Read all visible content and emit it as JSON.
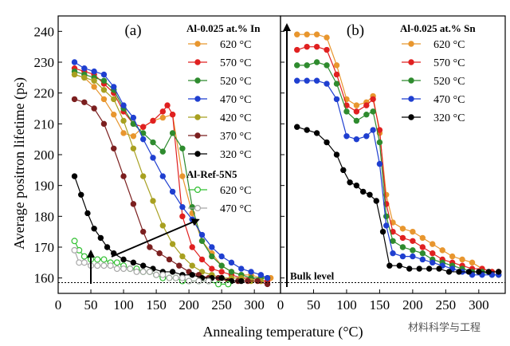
{
  "figure": {
    "ylabel": "Average positron lifetime (ps)",
    "xlabel": "Annealing temperature (°C)",
    "watermark": "材料科学与工程",
    "bulk_label": "Bulk level",
    "bulk_value": 158.5
  },
  "chart_data": [
    {
      "type": "line",
      "panel_label": "(a)",
      "xlim": [
        0,
        340
      ],
      "ylim": [
        155,
        245
      ],
      "xticks": [
        0,
        50,
        100,
        150,
        200,
        250,
        300
      ],
      "yticks": [
        160,
        170,
        180,
        190,
        200,
        210,
        220,
        230,
        240
      ],
      "legend_groups": [
        {
          "title": "Al-0.025 at.% In",
          "entries": [
            0,
            1,
            2,
            3,
            4,
            5,
            6
          ]
        },
        {
          "title": "Al-Ref-5N5",
          "entries": [
            7,
            8
          ]
        }
      ],
      "series": [
        {
          "name": "620 °C",
          "color": "#E8962E",
          "filled": true,
          "x": [
            25,
            40,
            55,
            70,
            85,
            100,
            115,
            130,
            145,
            160,
            175,
            190,
            205,
            220,
            235,
            250,
            265,
            280,
            295,
            310,
            325
          ],
          "y": [
            226,
            225,
            222,
            218,
            213,
            207,
            206,
            209,
            211,
            212,
            213,
            193,
            181,
            172,
            168,
            164,
            162,
            161,
            161,
            160,
            160
          ]
        },
        {
          "name": "570 °C",
          "color": "#E02020",
          "filled": true,
          "x": [
            25,
            40,
            55,
            70,
            85,
            100,
            115,
            130,
            145,
            160,
            167,
            175,
            190,
            205,
            220,
            235,
            250,
            265,
            280,
            295,
            310,
            320
          ],
          "y": [
            228,
            227,
            226,
            223,
            220,
            214,
            210,
            209,
            211,
            214,
            216,
            213,
            180,
            170,
            166,
            163,
            162,
            161,
            160,
            160,
            159,
            159
          ]
        },
        {
          "name": "520 °C",
          "color": "#2E8B2E",
          "filled": true,
          "x": [
            25,
            40,
            55,
            70,
            85,
            100,
            115,
            130,
            145,
            160,
            175,
            190,
            205,
            220,
            235,
            250,
            265,
            280,
            295,
            310,
            320
          ],
          "y": [
            227,
            226,
            225,
            224,
            221,
            215,
            210,
            207,
            204,
            201,
            207,
            202,
            183,
            172,
            167,
            164,
            162,
            161,
            160,
            160,
            160
          ]
        },
        {
          "name": "470 °C",
          "color": "#1F3FD0",
          "filled": true,
          "x": [
            25,
            40,
            55,
            70,
            85,
            100,
            115,
            130,
            145,
            160,
            175,
            190,
            205,
            220,
            235,
            250,
            265,
            280,
            295,
            310,
            320
          ],
          "y": [
            230,
            228,
            227,
            226,
            222,
            216,
            212,
            205,
            199,
            193,
            188,
            183,
            179,
            174,
            170,
            167,
            165,
            163,
            162,
            161,
            160
          ]
        },
        {
          "name": "420 °C",
          "color": "#A8A020",
          "filled": true,
          "x": [
            25,
            40,
            55,
            70,
            85,
            100,
            115,
            130,
            145,
            160,
            175,
            190,
            205,
            220,
            235,
            250,
            265,
            280,
            295,
            310
          ],
          "y": [
            226,
            225,
            224,
            221,
            218,
            211,
            202,
            193,
            185,
            177,
            171,
            167,
            164,
            162,
            161,
            160,
            160,
            160,
            159,
            159
          ]
        },
        {
          "name": "370 °C",
          "color": "#7B1F1F",
          "filled": true,
          "x": [
            25,
            40,
            55,
            70,
            85,
            100,
            115,
            130,
            140,
            155,
            170,
            185,
            200,
            215,
            230,
            245,
            260,
            275,
            290,
            305,
            320
          ],
          "y": [
            218,
            217,
            215,
            210,
            202,
            193,
            184,
            175,
            170,
            168,
            166,
            164,
            162,
            161,
            160,
            160,
            159,
            159,
            159,
            159,
            158
          ]
        },
        {
          "name": "320 °C",
          "color": "#000000",
          "filled": true,
          "x": [
            25,
            35,
            45,
            55,
            65,
            75,
            85,
            100,
            115,
            130,
            145,
            160,
            175,
            190,
            205,
            220,
            235,
            250,
            265,
            280
          ],
          "y": [
            193,
            187,
            181,
            176,
            173,
            170,
            168,
            166,
            165,
            164,
            163,
            162,
            162,
            161,
            161,
            160,
            160,
            160,
            159,
            159
          ]
        },
        {
          "name": "620 °C",
          "color": "#30C030",
          "filled": false,
          "x": [
            25,
            32,
            40,
            50,
            60,
            70,
            80,
            90,
            100,
            110,
            120,
            130,
            140,
            150,
            160,
            170,
            180,
            190,
            200,
            215,
            230,
            245,
            260
          ],
          "y": [
            172,
            169,
            167,
            166,
            166,
            166,
            165,
            165,
            164,
            163,
            163,
            162,
            162,
            161,
            160,
            160,
            160,
            159,
            159,
            159,
            159,
            158,
            158
          ]
        },
        {
          "name": "470 °C",
          "color": "#A8A8A8",
          "filled": false,
          "x": [
            25,
            32,
            40,
            50,
            60,
            70,
            80,
            90,
            100,
            110,
            120,
            130,
            140,
            150,
            160,
            170,
            180,
            190,
            200,
            215,
            230
          ],
          "y": [
            169,
            165,
            165,
            164,
            164,
            164,
            164,
            163,
            163,
            163,
            162,
            162,
            162,
            161,
            161,
            160,
            160,
            160,
            159,
            159,
            159
          ]
        }
      ]
    },
    {
      "type": "line",
      "panel_label": "(b)",
      "xlim": [
        0,
        340
      ],
      "ylim": [
        155,
        245
      ],
      "xticks": [
        0,
        50,
        100,
        150,
        200,
        250,
        300
      ],
      "legend_groups": [
        {
          "title": "Al-0.025 at.% Sn",
          "entries": [
            0,
            1,
            2,
            3,
            4
          ]
        }
      ],
      "series": [
        {
          "name": "620 °C",
          "color": "#E8962E",
          "filled": true,
          "x": [
            25,
            40,
            55,
            70,
            85,
            100,
            115,
            130,
            140,
            150,
            160,
            170,
            185,
            200,
            215,
            230,
            245,
            260,
            275,
            290,
            305,
            320,
            330
          ],
          "y": [
            239,
            239,
            239,
            238,
            229,
            218,
            216,
            217,
            219,
            207,
            187,
            178,
            176,
            175,
            173,
            171,
            169,
            167,
            166,
            165,
            163,
            162,
            162
          ]
        },
        {
          "name": "570 °C",
          "color": "#E02020",
          "filled": true,
          "x": [
            25,
            40,
            55,
            70,
            85,
            100,
            115,
            130,
            140,
            150,
            160,
            170,
            185,
            200,
            215,
            230,
            245,
            260,
            275,
            290,
            305,
            320,
            330
          ],
          "y": [
            234,
            235,
            235,
            234,
            226,
            216,
            214,
            216,
            218,
            208,
            184,
            175,
            173,
            172,
            170,
            168,
            166,
            165,
            164,
            163,
            163,
            162,
            162
          ]
        },
        {
          "name": "520 °C",
          "color": "#2E8B2E",
          "filled": true,
          "x": [
            25,
            40,
            55,
            70,
            85,
            100,
            115,
            130,
            140,
            150,
            160,
            170,
            185,
            200,
            215,
            230,
            245,
            260,
            275,
            290,
            305,
            320,
            330
          ],
          "y": [
            229,
            229,
            230,
            229,
            223,
            214,
            211,
            213,
            214,
            204,
            180,
            172,
            170,
            169,
            168,
            166,
            165,
            164,
            163,
            162,
            162,
            161,
            161
          ]
        },
        {
          "name": "470 °C",
          "color": "#1F3FD0",
          "filled": true,
          "x": [
            25,
            40,
            55,
            70,
            85,
            100,
            115,
            130,
            140,
            150,
            160,
            170,
            185,
            200,
            215,
            230,
            245,
            260,
            275,
            290,
            305,
            320,
            330
          ],
          "y": [
            224,
            224,
            224,
            223,
            218,
            206,
            205,
            206,
            208,
            197,
            177,
            168,
            167,
            167,
            166,
            165,
            164,
            163,
            162,
            161,
            161,
            161,
            161
          ]
        },
        {
          "name": "320 °C",
          "color": "#000000",
          "filled": true,
          "x": [
            25,
            40,
            55,
            70,
            85,
            95,
            105,
            115,
            125,
            135,
            145,
            155,
            165,
            180,
            195,
            210,
            225,
            240,
            255,
            270,
            285,
            300,
            315,
            330
          ],
          "y": [
            209,
            208,
            207,
            204,
            200,
            195,
            191,
            190,
            188,
            187,
            185,
            175,
            164,
            164,
            163,
            163,
            163,
            163,
            162,
            162,
            162,
            162,
            162,
            162
          ]
        }
      ]
    }
  ]
}
